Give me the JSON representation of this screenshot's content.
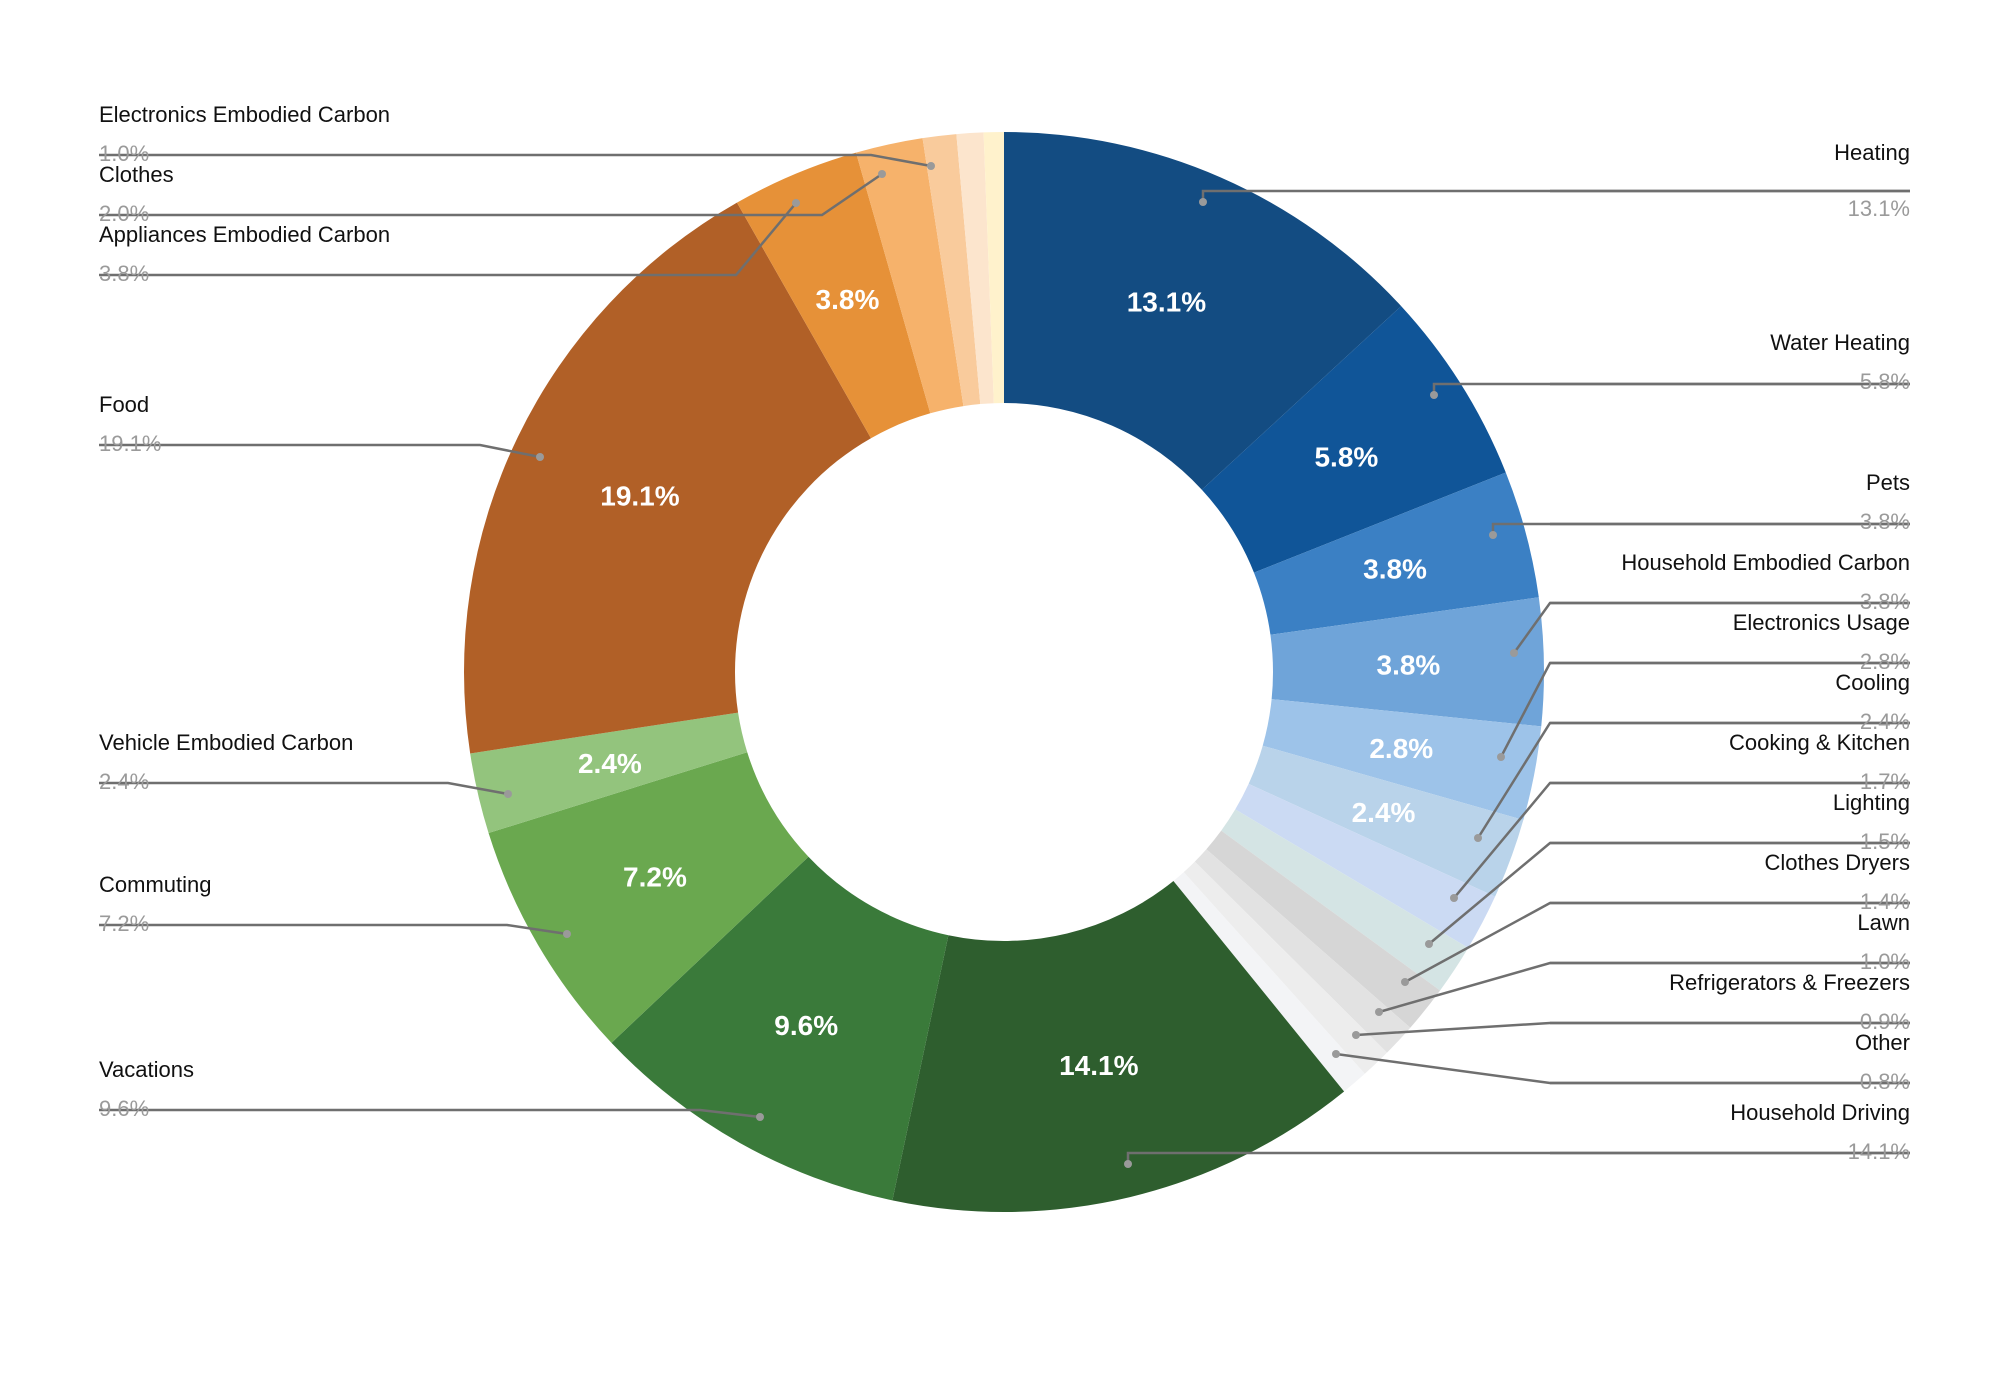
{
  "chart_data": {
    "type": "pie",
    "donut": true,
    "legend": "callout labels",
    "slices": [
      {
        "label": "Heating",
        "value": 13.1,
        "display": "13.1%",
        "color": "#134c82"
      },
      {
        "label": "Water Heating",
        "value": 5.8,
        "display": "5.8%",
        "color": "#105598"
      },
      {
        "label": "Pets",
        "value": 3.8,
        "display": "3.8%",
        "color": "#3b80c4"
      },
      {
        "label": "Household Embodied Carbon",
        "value": 3.8,
        "display": "3.8%",
        "color": "#6fa4d9"
      },
      {
        "label": "Electronics Usage",
        "value": 2.8,
        "display": "2.8%",
        "color": "#9dc3e9"
      },
      {
        "label": "Cooling",
        "value": 2.4,
        "display": "2.4%",
        "color": "#b9d3ea"
      },
      {
        "label": "Cooking & Kitchen",
        "value": 1.7,
        "display": "1.7%",
        "color": "#cbdaf3"
      },
      {
        "label": "Lighting",
        "value": 1.5,
        "display": "1.5%",
        "color": "#d4e4e4"
      },
      {
        "label": "Clothes Dryers",
        "value": 1.4,
        "display": "1.4%",
        "color": "#d6d6d6"
      },
      {
        "label": "Lawn",
        "value": 1.0,
        "display": "1.0%",
        "color": "#e2e2e2"
      },
      {
        "label": "Refrigerators & Freezers",
        "value": 0.9,
        "display": "0.9%",
        "color": "#ededed"
      },
      {
        "label": "Other",
        "value": 0.8,
        "display": "0.8%",
        "color": "#f3f4f6"
      },
      {
        "label": "Household Driving",
        "value": 14.1,
        "display": "14.1%",
        "color": "#2e5e2e"
      },
      {
        "label": "Vacations",
        "value": 9.6,
        "display": "9.6%",
        "color": "#3a7a3a"
      },
      {
        "label": "Commuting",
        "value": 7.2,
        "display": "7.2%",
        "color": "#6aa84f"
      },
      {
        "label": "Vehicle Embodied Carbon",
        "value": 2.4,
        "display": "2.4%",
        "color": "#93c47d"
      },
      {
        "label": "Food",
        "value": 19.1,
        "display": "19.1%",
        "color": "#b16027"
      },
      {
        "label": "Appliances Embodied Carbon",
        "value": 3.8,
        "display": "3.8%",
        "color": "#e69138"
      },
      {
        "label": "Clothes",
        "value": 2.0,
        "display": "2.0%",
        "color": "#f6b26b"
      },
      {
        "label": "Electronics Embodied Carbon",
        "value": 1.0,
        "display": "1.0%",
        "color": "#f9cb9c"
      },
      {
        "label": "",
        "value": 0.8,
        "display": "",
        "color": "#fce5cd"
      },
      {
        "label": "",
        "value": 0.6,
        "display": "",
        "color": "#fff2cc"
      }
    ]
  }
}
